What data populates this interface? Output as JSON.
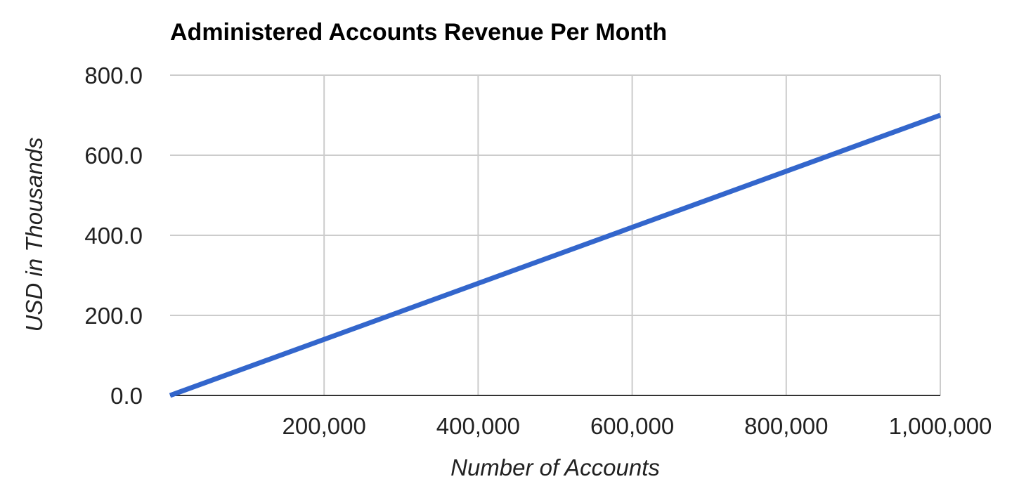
{
  "chart_data": {
    "type": "line",
    "title": "Administered Accounts Revenue Per Month",
    "xlabel": "Number of Accounts",
    "ylabel": "USD in Thousands",
    "xlim": [
      0,
      1000000
    ],
    "ylim": [
      0,
      800
    ],
    "x_ticks": [
      200000,
      400000,
      600000,
      800000,
      1000000
    ],
    "x_tick_labels": [
      "200,000",
      "400,000",
      "600,000",
      "800,000",
      "1,000,000"
    ],
    "y_ticks": [
      0,
      200,
      400,
      600,
      800
    ],
    "y_tick_labels": [
      "0.0",
      "200.0",
      "400.0",
      "600.0",
      "800.0"
    ],
    "grid": true,
    "legend": "none",
    "series": [
      {
        "color": "#3366cc",
        "x": [
          0,
          1000000
        ],
        "y": [
          0,
          700
        ]
      }
    ]
  }
}
